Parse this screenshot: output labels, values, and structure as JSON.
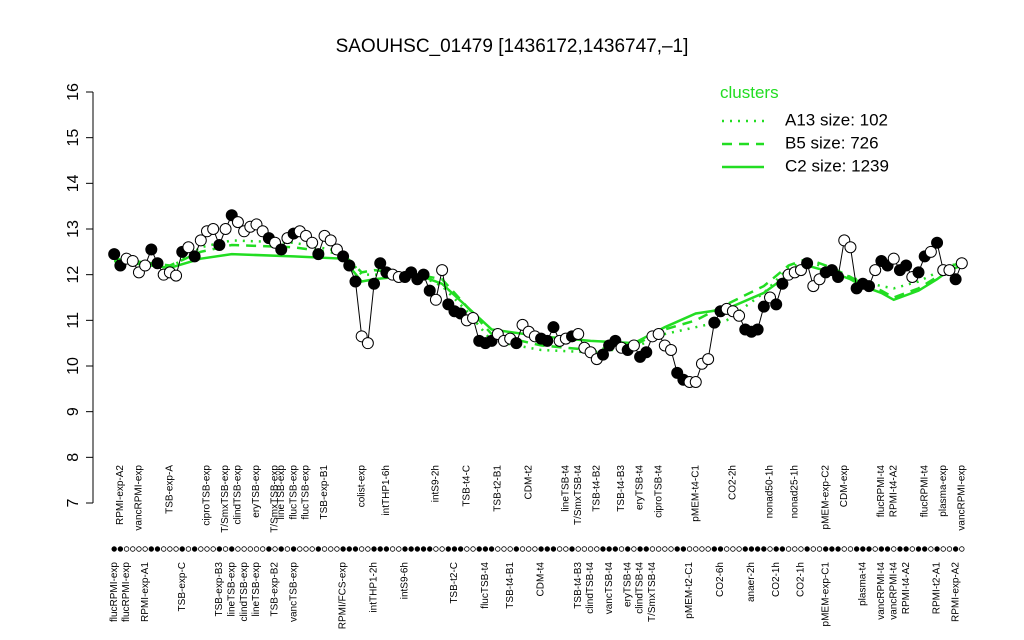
{
  "chart_data": {
    "type": "line",
    "title": "SAOUHSC_01479 [1436172,1436747,–1]",
    "ylim": [
      7,
      16
    ],
    "yticks": [
      7,
      8,
      9,
      10,
      11,
      12,
      13,
      14,
      15,
      16
    ],
    "xlim": [
      0,
      139
    ],
    "legend_title": "clusters",
    "legend_position": "top-right",
    "points": {
      "color": "#000000",
      "values": [
        12.45,
        12.2,
        12.35,
        12.3,
        12.05,
        12.2,
        12.55,
        12.25,
        12.0,
        12.05,
        11.98,
        12.5,
        12.6,
        12.4,
        12.75,
        12.95,
        13.0,
        12.65,
        13.0,
        13.3,
        13.15,
        12.95,
        13.05,
        13.1,
        12.95,
        12.8,
        12.7,
        12.55,
        12.8,
        12.9,
        12.95,
        12.85,
        12.7,
        12.45,
        12.85,
        12.75,
        12.55,
        12.4,
        12.2,
        11.85,
        10.65,
        10.5,
        11.8,
        12.25,
        12.05,
        12.0,
        11.95,
        11.95,
        12.05,
        11.9,
        12.0,
        11.65,
        11.45,
        12.1,
        11.35,
        11.2,
        11.15,
        11.0,
        11.05,
        10.55,
        10.5,
        10.55,
        10.7,
        10.55,
        10.6,
        10.5,
        10.9,
        10.75,
        10.65,
        10.6,
        10.55,
        10.85,
        10.55,
        10.6,
        10.65,
        10.7,
        10.4,
        10.3,
        10.15,
        10.25,
        10.45,
        10.55,
        10.4,
        10.35,
        10.45,
        10.2,
        10.3,
        10.65,
        10.7,
        10.45,
        10.35,
        9.85,
        9.7,
        9.65,
        9.65,
        10.05,
        10.15,
        10.95,
        11.2,
        11.25,
        11.2,
        11.1,
        10.8,
        10.75,
        10.8,
        11.3,
        11.5,
        11.35,
        11.8,
        12.0,
        12.05,
        12.1,
        12.25,
        11.75,
        11.9,
        12.05,
        12.1,
        11.95,
        12.75,
        12.6,
        11.7,
        11.8,
        11.75,
        12.1,
        12.3,
        12.2,
        12.35,
        12.1,
        12.2,
        11.95,
        12.05,
        12.4,
        12.5,
        12.7,
        12.1,
        12.1,
        11.9,
        12.25
      ],
      "filled": [
        true,
        true,
        false,
        false,
        false,
        false,
        true,
        true,
        false,
        false,
        false,
        true,
        false,
        true,
        false,
        false,
        false,
        true,
        false,
        true,
        false,
        false,
        false,
        false,
        false,
        true,
        false,
        true,
        false,
        true,
        false,
        false,
        false,
        true,
        false,
        false,
        false,
        true,
        true,
        true,
        false,
        false,
        true,
        true,
        true,
        false,
        false,
        true,
        true,
        true,
        true,
        true,
        false,
        false,
        true,
        true,
        true,
        false,
        false,
        true,
        true,
        true,
        false,
        false,
        false,
        true,
        false,
        false,
        false,
        true,
        true,
        true,
        false,
        false,
        true,
        false,
        false,
        false,
        false,
        true,
        true,
        true,
        false,
        true,
        false,
        true,
        true,
        false,
        false,
        false,
        false,
        true,
        true,
        false,
        false,
        false,
        false,
        true,
        true,
        false,
        false,
        false,
        true,
        true,
        true,
        true,
        false,
        true,
        true,
        false,
        false,
        false,
        true,
        false,
        false,
        true,
        true,
        true,
        false,
        false,
        true,
        true,
        true,
        false,
        true,
        true,
        false,
        true,
        true,
        false,
        true,
        true,
        false,
        true,
        false,
        false,
        true,
        false
      ]
    },
    "series": [
      {
        "name": "A13 size: 102",
        "color": "#22dd22",
        "style": "dotted",
        "x": [
          1,
          10,
          15,
          20,
          30,
          38,
          41,
          43,
          50,
          54,
          58,
          62,
          70,
          78,
          85,
          90,
          95,
          100,
          106,
          110,
          113,
          117,
          120,
          122,
          125,
          127,
          131,
          134,
          136,
          138
        ],
        "values": [
          12.3,
          12.15,
          12.6,
          12.75,
          12.7,
          12.5,
          12.0,
          12.0,
          12.0,
          11.75,
          11.2,
          10.55,
          10.35,
          10.3,
          10.4,
          10.7,
          10.85,
          11.0,
          11.6,
          12.15,
          12.3,
          12.1,
          11.95,
          11.85,
          11.75,
          11.7,
          11.85,
          12.05,
          12.2,
          12.25
        ]
      },
      {
        "name": "B5 size: 726",
        "color": "#22dd22",
        "style": "dashed",
        "x": [
          1,
          10,
          15,
          20,
          30,
          38,
          41,
          43,
          50,
          54,
          58,
          62,
          70,
          78,
          85,
          90,
          95,
          100,
          106,
          110,
          113,
          117,
          120,
          122,
          125,
          127,
          131,
          134,
          136,
          138
        ],
        "values": [
          12.35,
          12.2,
          12.5,
          12.65,
          12.6,
          12.45,
          12.05,
          12.1,
          12.0,
          11.9,
          11.3,
          10.7,
          10.45,
          10.35,
          10.45,
          10.8,
          11.0,
          11.35,
          11.75,
          12.2,
          12.35,
          12.15,
          11.95,
          11.8,
          11.65,
          11.5,
          11.7,
          11.95,
          12.15,
          12.3
        ]
      },
      {
        "name": "C2 size: 1239",
        "color": "#22dd22",
        "style": "solid",
        "x": [
          1,
          10,
          15,
          20,
          30,
          38,
          41,
          43,
          50,
          54,
          58,
          62,
          70,
          78,
          85,
          90,
          95,
          100,
          106,
          110,
          113,
          117,
          120,
          122,
          125,
          127,
          131,
          134,
          136,
          138
        ],
        "values": [
          12.3,
          12.15,
          12.35,
          12.45,
          12.4,
          12.35,
          11.85,
          11.9,
          12.0,
          11.8,
          11.3,
          10.8,
          10.65,
          10.55,
          10.5,
          10.85,
          11.15,
          11.25,
          11.6,
          12.0,
          12.2,
          12.05,
          11.9,
          11.75,
          11.6,
          11.45,
          11.65,
          11.9,
          12.1,
          12.2
        ]
      }
    ],
    "top_labels": {
      "x": [
        2,
        5,
        10,
        16,
        19,
        21,
        24,
        27,
        28,
        30,
        32,
        35,
        41,
        45,
        53,
        58,
        63,
        68,
        74,
        76,
        79,
        83,
        86,
        89,
        95,
        101,
        107,
        111,
        116,
        119,
        125,
        127,
        132,
        135,
        138
      ],
      "labels": [
        "RPMI-exp-A2",
        "vancRPMI-exp",
        "TSB-exp-A",
        "ciproTSB-exp",
        "T/SmxTSB-exp",
        "clindTSB-exp",
        "eryTSB-exp",
        "T/SmxTSB-exp",
        "lineTSB-exp",
        "flucTSB-exp",
        "flucTSB-exp",
        "TSB-exp-B1",
        "colist-exp",
        "intTHP1-6h",
        "intS9-2h",
        "TSB-t4-C",
        "TSB-t2-B1",
        "CDM-t2",
        "lineTSB-t4",
        "T/SmxTSB-t4",
        "TSB-t4-B2",
        "TSB-t4-B3",
        "eryTSB-t4",
        "ciproTSB-t4",
        "pMEM-t4-C1",
        "CO2-2h",
        "nonad50-1h",
        "nonad25-1h",
        "pMEM-exp-C2",
        "CDM-exp",
        "flucRPMI-t4",
        "RPMI-t4-A2",
        "flucRPMI-t4",
        "plasma-exp",
        "vancRPMI-exp"
      ]
    },
    "bottom_labels": {
      "x": [
        1,
        3,
        6,
        12,
        18,
        20,
        22,
        24,
        27,
        30,
        38,
        43,
        48,
        56,
        61,
        65,
        70,
        76,
        78,
        81,
        84,
        86,
        88,
        94,
        99,
        104,
        108,
        112,
        116,
        122,
        125,
        127,
        129,
        134,
        137
      ],
      "labels": [
        "flucRPMI-exp",
        "flucRPMI-exp",
        "RPMI-exp-A1",
        "TSB-exp-C",
        "TSB-exp-B3",
        "lineTSB-exp",
        "clindTSB-exp",
        "lineTSB-exp",
        "TSB-exp-B2",
        "vancTSB-exp",
        "RPMI/FCS-exp",
        "intTHP1-2h",
        "intS9-6h",
        "TSB-t2-C",
        "flucTSB-t4",
        "TSB-t4-B1",
        "CDM-t4",
        "TSB-t4-B3",
        "clindTSB-t4",
        "vancTSB-t4",
        "eryTSB-t4",
        "clindTSB-t4",
        "T/SmxTSB-t4",
        "pMEM-t2-C1",
        "CO2-6h",
        "anaer-2h",
        "CO2-1h",
        "CO2-1h",
        "pMEM-exp-C1",
        "plasma-t4",
        "vancRPMI-t4",
        "vancRPMI-t4",
        "RPMI-t4-A2",
        "RPMI-t2-A1",
        "RPMI-exp-A2"
      ]
    }
  }
}
